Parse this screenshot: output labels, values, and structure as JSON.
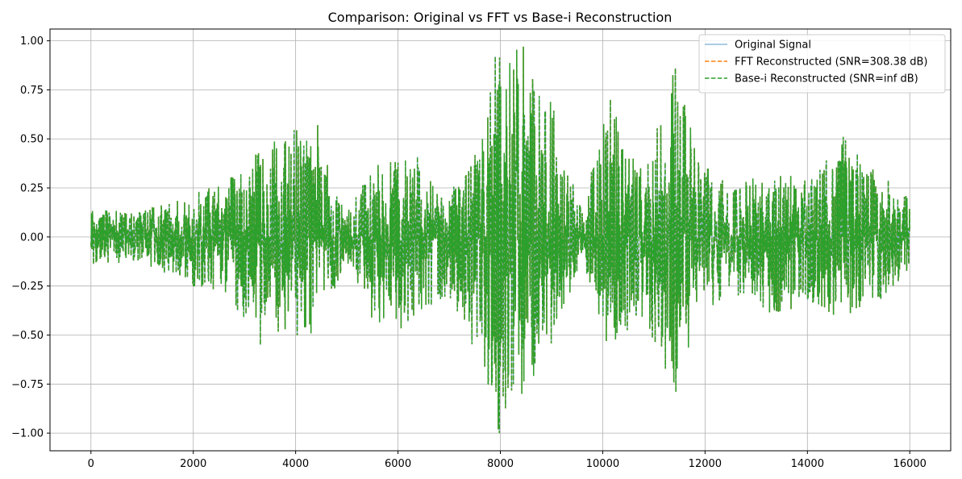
{
  "chart_data": {
    "type": "line",
    "title": "Comparison: Original vs FFT vs Base-i Reconstruction",
    "xlabel": "",
    "ylabel": "",
    "xlim": [
      -800,
      16800
    ],
    "ylim": [
      -1.09,
      1.06
    ],
    "xticks": [
      0,
      2000,
      4000,
      6000,
      8000,
      10000,
      12000,
      14000,
      16000
    ],
    "xtick_labels": [
      "0",
      "2000",
      "4000",
      "6000",
      "8000",
      "10000",
      "12000",
      "14000",
      "16000"
    ],
    "yticks": [
      -1.0,
      -0.75,
      -0.5,
      -0.25,
      0.0,
      0.25,
      0.5,
      0.75,
      1.0
    ],
    "ytick_labels": [
      "−1.00",
      "−0.75",
      "−0.50",
      "−0.25",
      "0.00",
      "0.25",
      "0.50",
      "0.75",
      "1.00"
    ],
    "grid": true,
    "legend_position": "top-right",
    "series": [
      {
        "name": "Original Signal",
        "color": "#1f77b4",
        "style": "solid",
        "alpha": 0.5
      },
      {
        "name": "FFT Reconstructed (SNR=308.38 dB)",
        "color": "#ff7f0e",
        "style": "dashed"
      },
      {
        "name": "Base-i Reconstructed (SNR=inf dB)",
        "color": "#2ca02c",
        "style": "dashed"
      }
    ],
    "signal": {
      "x_range": [
        0,
        16000
      ],
      "sample_count": 16000,
      "envelope": [
        {
          "x": 0,
          "upper": 0.14,
          "lower": -0.14
        },
        {
          "x": 1000,
          "upper": 0.13,
          "lower": -0.13
        },
        {
          "x": 1900,
          "upper": 0.22,
          "lower": -0.25
        },
        {
          "x": 2600,
          "upper": 0.28,
          "lower": -0.3
        },
        {
          "x": 3200,
          "upper": 0.43,
          "lower": -0.48
        },
        {
          "x": 3800,
          "upper": 0.55,
          "lower": -0.49
        },
        {
          "x": 4400,
          "upper": 0.57,
          "lower": -0.52
        },
        {
          "x": 5000,
          "upper": 0.12,
          "lower": -0.12
        },
        {
          "x": 5500,
          "upper": 0.37,
          "lower": -0.46
        },
        {
          "x": 6300,
          "upper": 0.45,
          "lower": -0.47
        },
        {
          "x": 6900,
          "upper": 0.2,
          "lower": -0.31
        },
        {
          "x": 7600,
          "upper": 0.5,
          "lower": -0.62
        },
        {
          "x": 7950,
          "upper": 0.92,
          "lower": -1.0
        },
        {
          "x": 8450,
          "upper": 0.97,
          "lower": -0.79
        },
        {
          "x": 9000,
          "upper": 0.73,
          "lower": -0.57
        },
        {
          "x": 9600,
          "upper": 0.13,
          "lower": -0.1
        },
        {
          "x": 10100,
          "upper": 0.7,
          "lower": -0.63
        },
        {
          "x": 10800,
          "upper": 0.33,
          "lower": -0.41
        },
        {
          "x": 11400,
          "upper": 0.86,
          "lower": -0.79
        },
        {
          "x": 11900,
          "upper": 0.4,
          "lower": -0.4
        },
        {
          "x": 12500,
          "upper": 0.25,
          "lower": -0.28
        },
        {
          "x": 13200,
          "upper": 0.34,
          "lower": -0.4
        },
        {
          "x": 14000,
          "upper": 0.3,
          "lower": -0.35
        },
        {
          "x": 14700,
          "upper": 0.51,
          "lower": -0.43
        },
        {
          "x": 15300,
          "upper": 0.35,
          "lower": -0.36
        },
        {
          "x": 16000,
          "upper": 0.2,
          "lower": -0.17
        }
      ]
    }
  }
}
